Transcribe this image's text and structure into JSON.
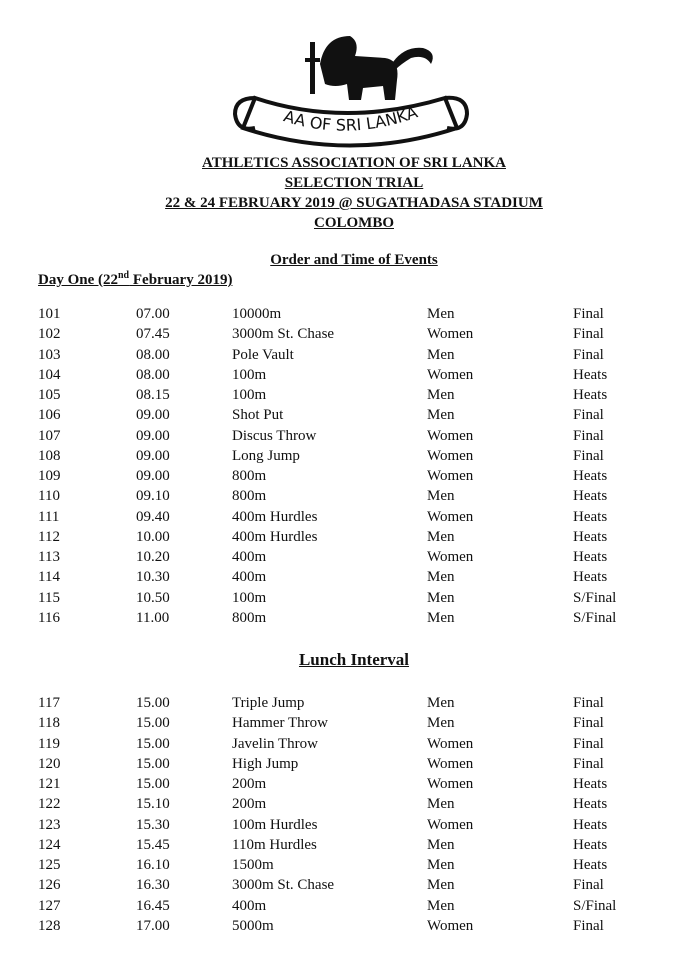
{
  "logo": {
    "text": "AA OF SRI LANKA"
  },
  "header": {
    "lines": [
      "ATHLETICS ASSOCIATION OF SRI LANKA",
      "SELECTION TRIAL",
      "22 & 24 FEBRUARY 2019 @ SUGATHADASA STADIUM",
      "COLOMBO"
    ],
    "subtitle": "Order and Time of Events"
  },
  "day": {
    "prefix": "Day One (22",
    "sup": "nd",
    "suffix": " February 2019)"
  },
  "morning": [
    [
      "101",
      "07.00",
      "10000m",
      "Men",
      "Final"
    ],
    [
      "102",
      "07.45",
      "3000m St. Chase",
      "Women",
      "Final"
    ],
    [
      "103",
      "08.00",
      "Pole Vault",
      "Men",
      "Final"
    ],
    [
      "104",
      "08.00",
      "100m",
      "Women",
      "Heats"
    ],
    [
      "105",
      "08.15",
      "100m",
      "Men",
      "Heats"
    ],
    [
      "106",
      "09.00",
      "Shot Put",
      "Men",
      "Final"
    ],
    [
      "107",
      "09.00",
      "Discus Throw",
      "Women",
      "Final"
    ],
    [
      "108",
      "09.00",
      "Long Jump",
      "Women",
      "Final"
    ],
    [
      "109",
      "09.00",
      "800m",
      "Women",
      "Heats"
    ],
    [
      "110",
      "09.10",
      "800m",
      "Men",
      "Heats"
    ],
    [
      "111",
      "09.40",
      "400m Hurdles",
      "Women",
      "Heats"
    ],
    [
      "112",
      "10.00",
      "400m Hurdles",
      "Men",
      "Heats"
    ],
    [
      "113",
      "10.20",
      "400m",
      "Women",
      "Heats"
    ],
    [
      "114",
      "10.30",
      "400m",
      "Men",
      "Heats"
    ],
    [
      "115",
      "10.50",
      "100m",
      "Men",
      "S/Final"
    ],
    [
      "116",
      "11.00",
      "800m",
      "Men",
      "S/Final"
    ]
  ],
  "lunch": "Lunch Interval",
  "afternoon": [
    [
      "117",
      "15.00",
      "Triple Jump",
      "Men",
      "Final"
    ],
    [
      "118",
      "15.00",
      "Hammer Throw",
      "Men",
      "Final"
    ],
    [
      "119",
      "15.00",
      "Javelin Throw",
      "Women",
      "Final"
    ],
    [
      "120",
      "15.00",
      "High Jump",
      "Women",
      "Final"
    ],
    [
      "121",
      "15.00",
      "200m",
      "Women",
      "Heats"
    ],
    [
      "122",
      "15.10",
      "200m",
      "Men",
      "Heats"
    ],
    [
      "123",
      "15.30",
      "100m Hurdles",
      "Women",
      "Heats"
    ],
    [
      "124",
      "15.45",
      "110m Hurdles",
      "Men",
      "Heats"
    ],
    [
      "125",
      "16.10",
      "1500m",
      "Men",
      "Heats"
    ],
    [
      "126",
      "16.30",
      "3000m St. Chase",
      "Men",
      "Final"
    ],
    [
      "127",
      "16.45",
      "400m",
      "Men",
      "S/Final"
    ],
    [
      "128",
      "17.00",
      "5000m",
      "Women",
      "Final"
    ]
  ]
}
